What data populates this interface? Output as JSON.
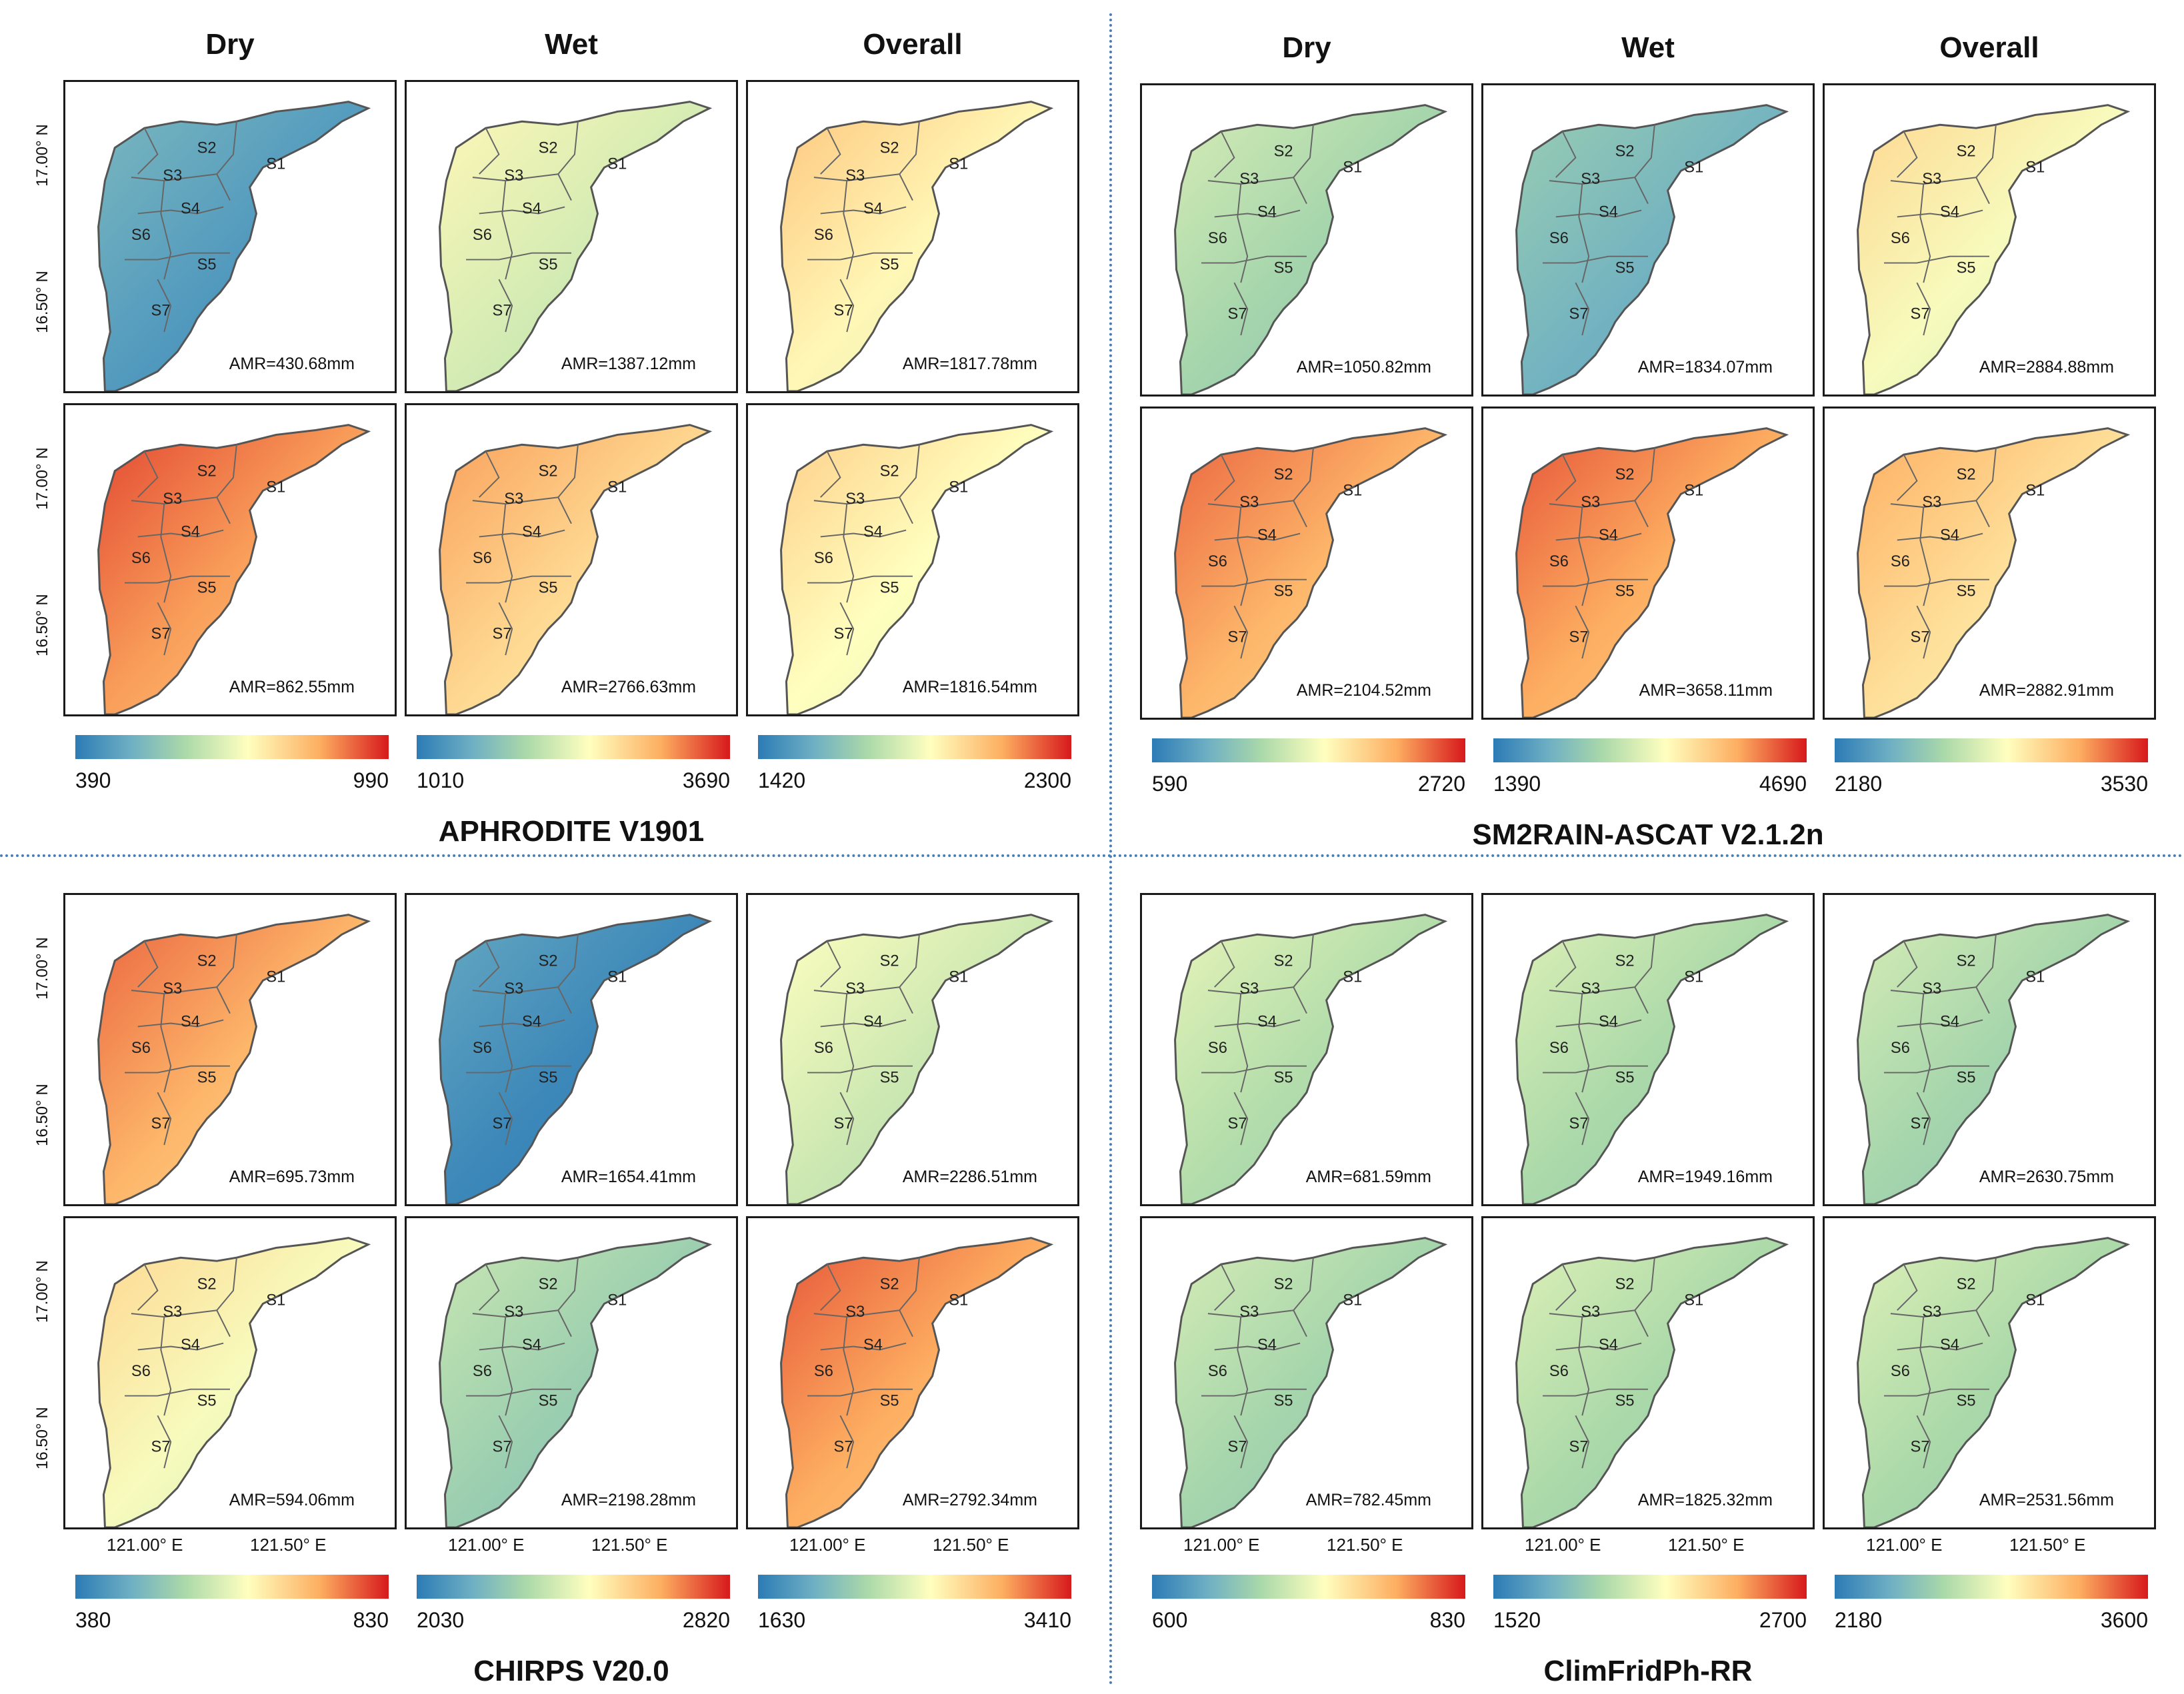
{
  "labels": {
    "subbasins": [
      "S1",
      "S2",
      "S3",
      "S4",
      "S5",
      "S6",
      "S7"
    ]
  },
  "colors": {
    "stops": [
      "#2c7bb6",
      "#6fb0c3",
      "#abd9a9",
      "#ffffbf",
      "#fdae61",
      "#d7191c"
    ]
  },
  "lat_labels": [
    "17.00° N",
    "16.50° N"
  ],
  "lon_labels": [
    "121.00° E",
    "121.50° E"
  ],
  "quadrants": [
    {
      "title": "APHRODITE V1901",
      "col_heads": [
        "Dry",
        "Wet",
        "Overall"
      ],
      "colorbars": [
        {
          "min": "390",
          "max": "990"
        },
        {
          "min": "1010",
          "max": "3690"
        },
        {
          "min": "1420",
          "max": "2300"
        }
      ],
      "rows": [
        {
          "amr": [
            "AMR=430.68mm",
            "AMR=1387.12mm",
            "AMR=1817.78mm"
          ],
          "levels": [
            0.12,
            0.5,
            0.62
          ]
        },
        {
          "amr": [
            "AMR=862.55mm",
            "AMR=2766.63mm",
            "AMR=1816.54mm"
          ],
          "levels": [
            0.82,
            0.7,
            0.6
          ]
        }
      ]
    },
    {
      "title": "SM2RAIN-ASCAT V2.1.2n",
      "col_heads": [
        "Dry",
        "Wet",
        "Overall"
      ],
      "colorbars": [
        {
          "min": "590",
          "max": "2720"
        },
        {
          "min": "1390",
          "max": "4690"
        },
        {
          "min": "2180",
          "max": "3530"
        }
      ],
      "rows": [
        {
          "amr": [
            "AMR=1050.82mm",
            "AMR=1834.07mm",
            "AMR=2884.88mm"
          ],
          "levels": [
            0.38,
            0.22,
            0.58
          ]
        },
        {
          "amr": [
            "AMR=2104.52mm",
            "AMR=3658.11mm",
            "AMR=2882.91mm"
          ],
          "levels": [
            0.78,
            0.8,
            0.68
          ]
        }
      ]
    },
    {
      "title": "CHIRPS V20.0",
      "col_heads": [],
      "colorbars": [
        {
          "min": "380",
          "max": "830"
        },
        {
          "min": "2030",
          "max": "2820"
        },
        {
          "min": "1630",
          "max": "3410"
        }
      ],
      "rows": [
        {
          "amr": [
            "AMR=695.73mm",
            "AMR=1654.41mm",
            "AMR=2286.51mm"
          ],
          "levels": [
            0.78,
            0.05,
            0.48
          ]
        },
        {
          "amr": [
            "AMR=594.06mm",
            "AMR=2198.28mm",
            "AMR=2792.34mm"
          ],
          "levels": [
            0.58,
            0.35,
            0.8
          ]
        }
      ]
    },
    {
      "title": "ClimFridPh-RR",
      "col_heads": [],
      "colorbars": [
        {
          "min": "600",
          "max": "830"
        },
        {
          "min": "1520",
          "max": "2700"
        },
        {
          "min": "2180",
          "max": "3600"
        }
      ],
      "rows": [
        {
          "amr": [
            "AMR=681.59mm",
            "AMR=1949.16mm",
            "AMR=2630.75mm"
          ],
          "levels": [
            0.42,
            0.4,
            0.38
          ]
        },
        {
          "amr": [
            "AMR=782.45mm",
            "AMR=1825.32mm",
            "AMR=2531.56mm"
          ],
          "levels": [
            0.38,
            0.4,
            0.4
          ]
        }
      ]
    }
  ]
}
